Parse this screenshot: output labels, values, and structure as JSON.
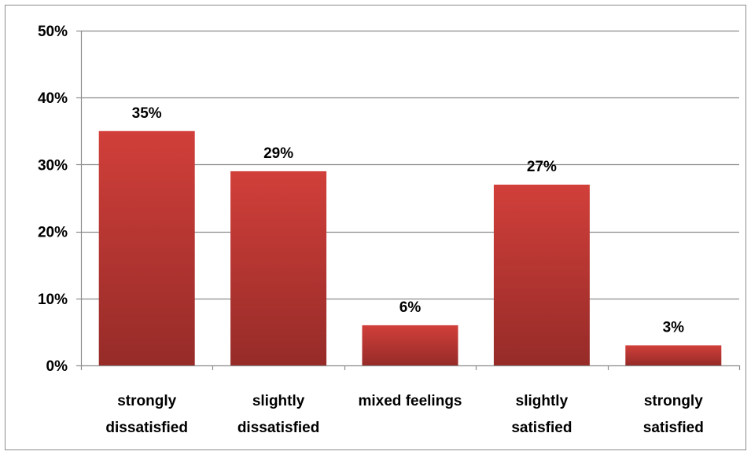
{
  "chart_data": {
    "type": "bar",
    "title": "",
    "xlabel": "",
    "ylabel": "",
    "categories": [
      [
        "strongly",
        "dissatisfied"
      ],
      [
        "slightly",
        "dissatisfied"
      ],
      [
        "mixed feelings"
      ],
      [
        "slightly",
        "satisfied"
      ],
      [
        "strongly",
        "satisfied"
      ]
    ],
    "values": [
      35,
      29,
      6,
      27,
      3
    ],
    "data_labels": [
      "35%",
      "29%",
      "6%",
      "27%",
      "3%"
    ],
    "ylim": [
      0,
      50
    ],
    "yticks": [
      0,
      10,
      20,
      30,
      40,
      50
    ],
    "ytick_labels": [
      "0%",
      "10%",
      "20%",
      "30%",
      "40%",
      "50%"
    ],
    "grid": true,
    "legend": "none",
    "colors": {
      "bar_top": "#d13f3a",
      "bar_bottom": "#962b28",
      "gridline": "#8c8c8c",
      "axis": "#8c8c8c",
      "text": "#000000"
    }
  }
}
